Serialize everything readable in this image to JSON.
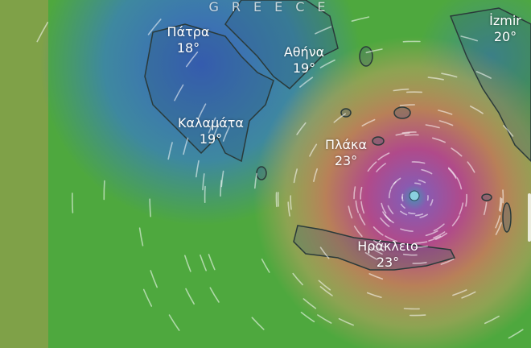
{
  "map": {
    "country_label": "GREECE",
    "cities": [
      {
        "name": "Πάτρα",
        "temp": "18°"
      },
      {
        "name": "Αθήνα",
        "temp": "19°"
      },
      {
        "name": "İzmir",
        "temp": "20°"
      },
      {
        "name": "Καλαμάτα",
        "temp": "19°"
      },
      {
        "name": "Πλάκα",
        "temp": "23°"
      },
      {
        "name": "Ηράκλειο",
        "temp": "23°"
      }
    ],
    "colors": {
      "calm": "#3c7fc0",
      "moderate": "#4caf3c",
      "strong": "#c89a4a",
      "severe": "#b0407a"
    }
  }
}
